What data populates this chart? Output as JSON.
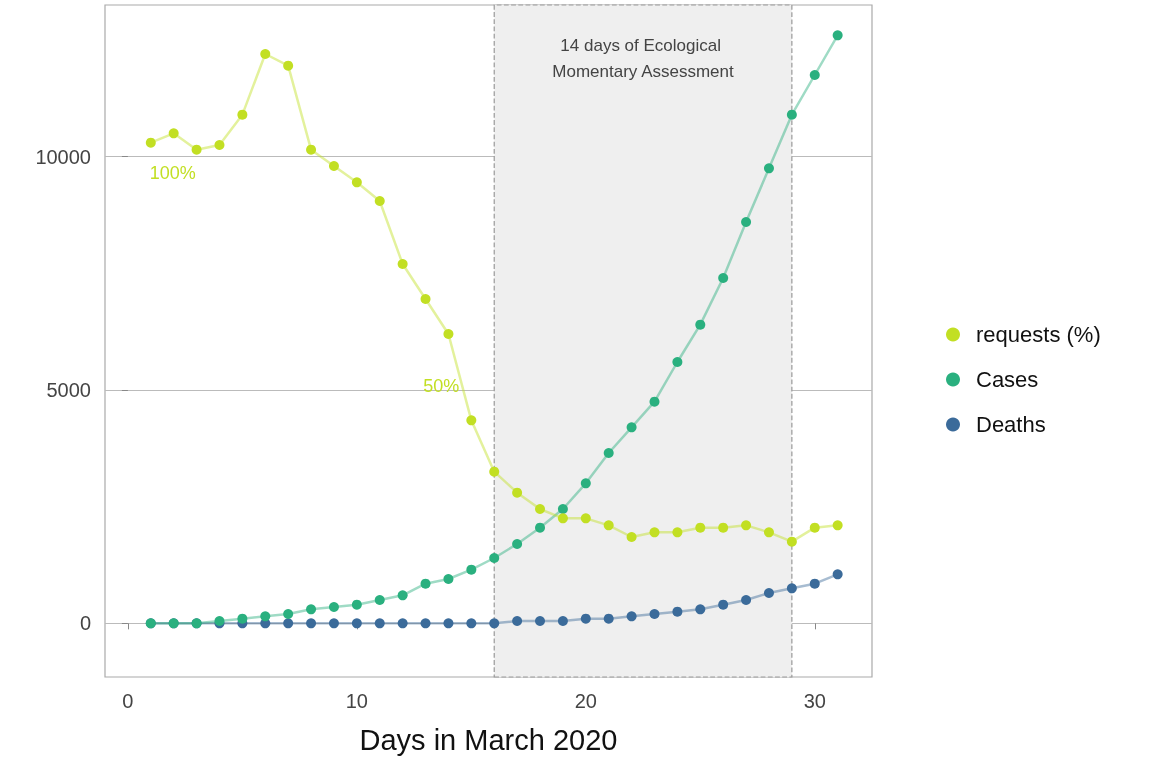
{
  "chart_data": {
    "type": "line",
    "xlabel": "Days in March 2020",
    "x": [
      1,
      2,
      3,
      4,
      5,
      6,
      7,
      8,
      9,
      10,
      11,
      12,
      13,
      14,
      15,
      16,
      17,
      18,
      19,
      20,
      21,
      22,
      23,
      24,
      25,
      26,
      27,
      28,
      29,
      30,
      31
    ],
    "series": [
      {
        "name": "requests (%)",
        "color": "#c2df23",
        "values": [
          10300,
          10500,
          10150,
          10250,
          10900,
          12200,
          11950,
          10150,
          9800,
          9450,
          9050,
          7700,
          6950,
          6200,
          4350,
          3250,
          2800,
          2450,
          2250,
          2250,
          2100,
          1850,
          1950,
          1950,
          2050,
          2050,
          2100,
          1950,
          1750,
          2050,
          2100
        ]
      },
      {
        "name": "Cases",
        "color": "#2ab07f",
        "values": [
          0,
          0,
          0,
          50,
          100,
          150,
          200,
          300,
          350,
          400,
          500,
          600,
          850,
          950,
          1150,
          1400,
          1700,
          2050,
          2450,
          3000,
          3650,
          4200,
          4750,
          5600,
          6400,
          7400,
          8600,
          9750,
          10900,
          11750,
          12600
        ]
      },
      {
        "name": "Deaths",
        "color": "#3b6b9a",
        "values": [
          0,
          0,
          0,
          0,
          0,
          0,
          0,
          0,
          0,
          0,
          0,
          0,
          0,
          0,
          0,
          0,
          50,
          50,
          50,
          100,
          100,
          150,
          200,
          250,
          300,
          400,
          500,
          650,
          750,
          850,
          1050
        ]
      }
    ],
    "xlim": [
      -1,
      32.5
    ],
    "xticks": [
      0,
      10,
      20,
      30
    ],
    "ylim": [
      -1150,
      13250
    ],
    "yticks": [
      0,
      5000,
      10000
    ],
    "bands": [
      {
        "axis": "x",
        "from": 16,
        "to": 29,
        "label": "14 days of Ecological Momentary Assessment",
        "color": "#efefef"
      }
    ],
    "annotations": [
      {
        "text": "100%",
        "x": 1,
        "y": 10300
      },
      {
        "text": "50%",
        "x": 15,
        "y": 4350
      }
    ],
    "grid": "y",
    "legend": "right",
    "marker": "circle",
    "line_style": "solid"
  }
}
